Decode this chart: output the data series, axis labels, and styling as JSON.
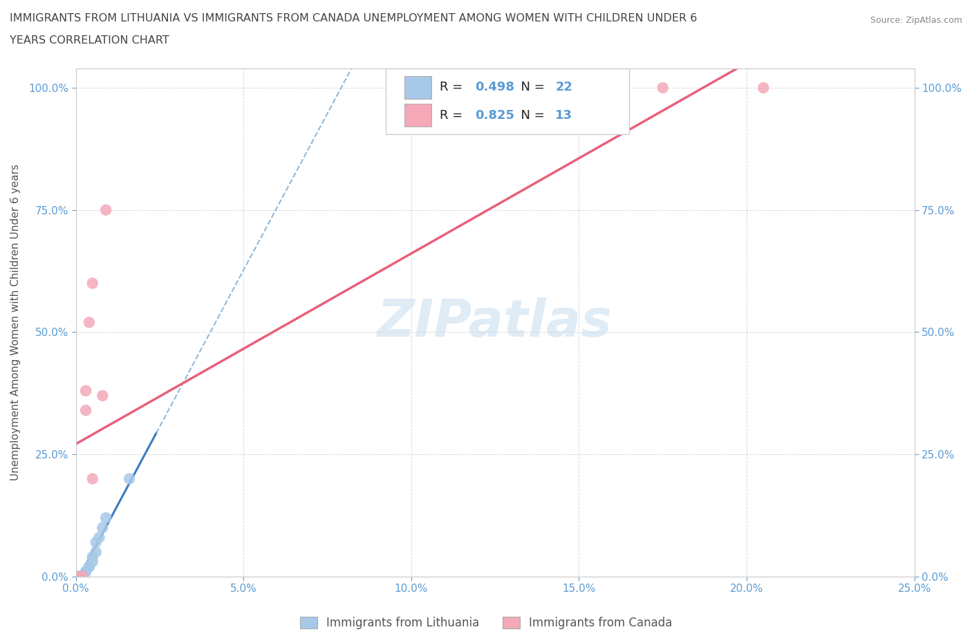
{
  "title_line1": "IMMIGRANTS FROM LITHUANIA VS IMMIGRANTS FROM CANADA UNEMPLOYMENT AMONG WOMEN WITH CHILDREN UNDER 6",
  "title_line2": "YEARS CORRELATION CHART",
  "source": "Source: ZipAtlas.com",
  "ylabel": "Unemployment Among Women with Children Under 6 years",
  "xlim": [
    0.0,
    0.25
  ],
  "ylim": [
    0.0,
    1.04
  ],
  "ytick_values": [
    0.0,
    0.25,
    0.5,
    0.75,
    1.0
  ],
  "xtick_values": [
    0.0,
    0.05,
    0.1,
    0.15,
    0.2,
    0.25
  ],
  "lithuania_color": "#a8c8e8",
  "canada_color": "#f4a8b8",
  "line_lithuania_solid_color": "#3a7abf",
  "line_lithuania_dash_color": "#90b8d8",
  "line_canada_color": "#e8607a",
  "R_lithuania": 0.498,
  "N_lithuania": 22,
  "R_canada": 0.825,
  "N_canada": 13,
  "legend_label_1": "Immigrants from Lithuania",
  "legend_label_2": "Immigrants from Canada",
  "watermark": "ZIPatlas",
  "background_color": "#ffffff",
  "grid_color": "#d8d8d8",
  "title_color": "#444444",
  "axis_label_color": "#5b9bd5",
  "lithuania_x": [
    0.0,
    0.0,
    0.0,
    0.0,
    0.0,
    0.001,
    0.001,
    0.001,
    0.002,
    0.002,
    0.003,
    0.003,
    0.004,
    0.004,
    0.005,
    0.005,
    0.006,
    0.006,
    0.007,
    0.008,
    0.009,
    0.016
  ],
  "lithuania_y": [
    0.0,
    0.0,
    0.0,
    0.0,
    0.0,
    0.0,
    0.0,
    0.0,
    0.0,
    0.0,
    0.01,
    0.01,
    0.02,
    0.02,
    0.03,
    0.04,
    0.05,
    0.07,
    0.08,
    0.1,
    0.12,
    0.2
  ],
  "canada_x": [
    0.0,
    0.0,
    0.001,
    0.002,
    0.003,
    0.003,
    0.004,
    0.005,
    0.005,
    0.008,
    0.009,
    0.175,
    0.205
  ],
  "canada_y": [
    0.0,
    0.0,
    0.0,
    0.0,
    0.34,
    0.38,
    0.52,
    0.2,
    0.6,
    0.37,
    0.75,
    1.0,
    1.0
  ]
}
